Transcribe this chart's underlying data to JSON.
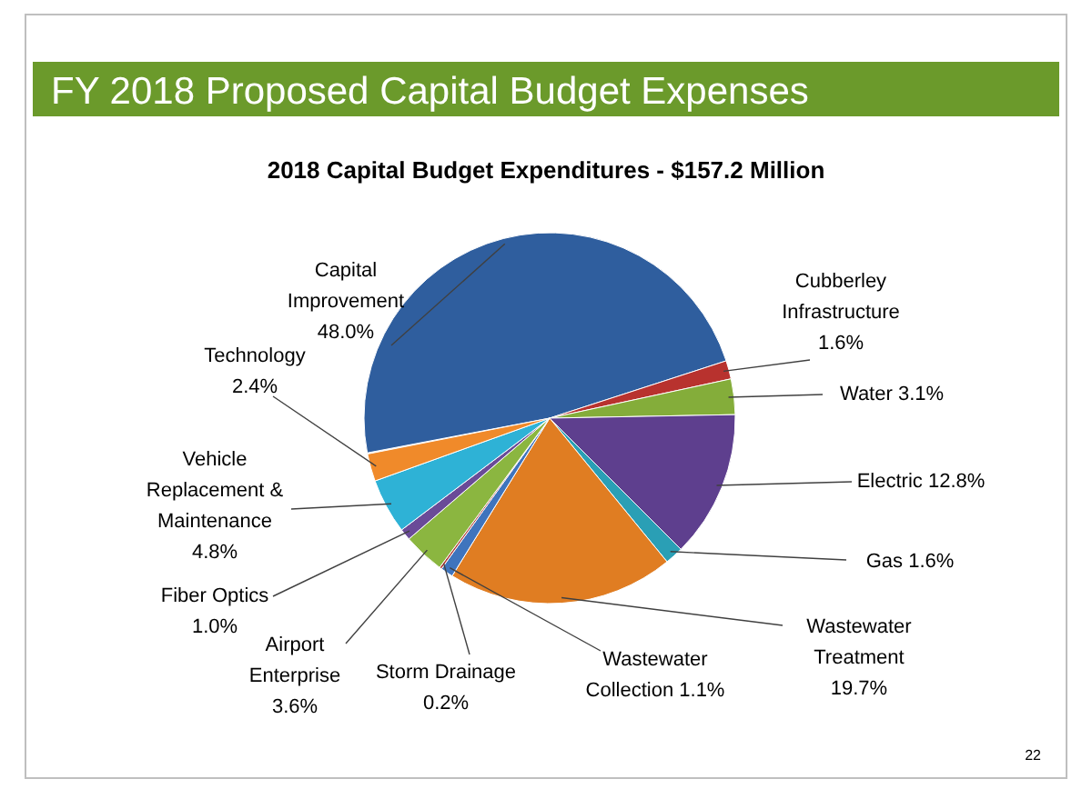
{
  "chart_data": {
    "type": "pie",
    "title": "FY 2018 Proposed Capital Budget Expenses",
    "subtitle": "2018 Capital Budget Expenditures - $157.2 Million",
    "categories": [
      "Capital Improvement",
      "Cubberley Infrastructure",
      "Water",
      "Electric",
      "Gas",
      "Wastewater Treatment",
      "Wastewater Collection",
      "Storm Drainage",
      "Airport Enterprise",
      "Fiber Optics",
      "Vehicle Replacement & Maintenance",
      "Technology"
    ],
    "values": [
      48.0,
      1.6,
      3.1,
      12.8,
      1.6,
      19.7,
      1.1,
      0.2,
      3.6,
      1.0,
      4.8,
      2.4
    ],
    "value_labels": [
      "48.0%",
      "1.6%",
      "3.1%",
      "12.8%",
      "1.6%",
      "19.7%",
      "1.1%",
      "0.2%",
      "3.6%",
      "1.0%",
      "4.8%",
      "2.4%"
    ],
    "colors": [
      "#2f5e9e",
      "#b8322e",
      "#84ad3a",
      "#5e3f8e",
      "#2a9fb5",
      "#e07d22",
      "#3f74bd",
      "#b03a36",
      "#8bb640",
      "#6a4b98",
      "#2eb2d6",
      "#f08a2a"
    ],
    "annotations": [
      "22"
    ]
  }
}
